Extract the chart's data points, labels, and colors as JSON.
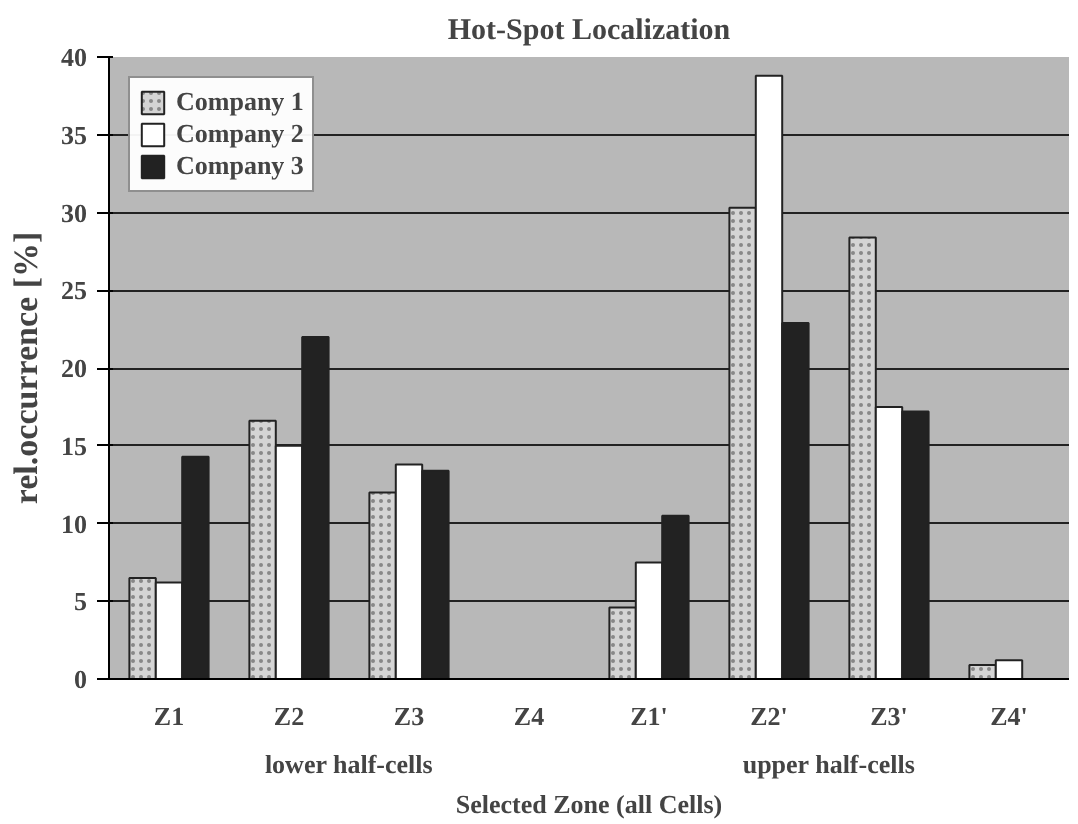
{
  "chart_data": {
    "type": "bar",
    "title": "Hot-Spot Localization",
    "xlabel": "Selected Zone (all Cells)",
    "ylabel": "rel.occurrence [%]",
    "categories": [
      "Z1",
      "Z2",
      "Z3",
      "Z4",
      "Z1'",
      "Z2'",
      "Z3'",
      "Z4'"
    ],
    "series": [
      {
        "name": "Company 1",
        "color": "#d4d4d4",
        "values": [
          6.5,
          16.6,
          12.0,
          null,
          4.6,
          30.3,
          28.4,
          0.9
        ]
      },
      {
        "name": "Company 2",
        "color": "#ffffff",
        "values": [
          6.2,
          15.0,
          13.8,
          null,
          7.5,
          38.8,
          17.5,
          1.2
        ]
      },
      {
        "name": "Company 3",
        "color": "#222222",
        "values": [
          14.3,
          22.0,
          13.4,
          null,
          10.5,
          22.9,
          17.2,
          null
        ]
      }
    ],
    "ylim": [
      0,
      40
    ],
    "yticks": [
      0,
      5,
      10,
      15,
      20,
      25,
      30,
      35,
      40
    ],
    "grid": "y",
    "legend": "top left",
    "annotations": [
      "lower half-cells",
      "upper half-cells"
    ]
  }
}
